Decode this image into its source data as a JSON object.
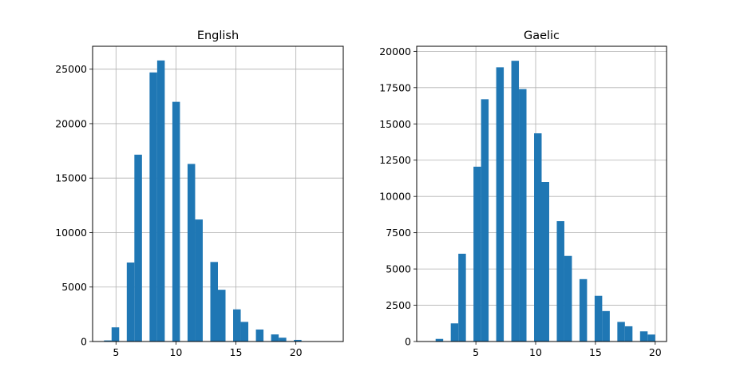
{
  "chart_data": [
    {
      "type": "bar",
      "title": "English",
      "xlabel": "",
      "ylabel": "",
      "xlim": [
        3.05,
        23.95
      ],
      "ylim": [
        0,
        27100
      ],
      "grid": true,
      "bar_color": "#1f77b4",
      "bin_width": 0.633,
      "x": [
        4,
        4.633,
        5.267,
        5.9,
        6.533,
        7.167,
        7.8,
        8.433,
        9.067,
        9.7,
        10.333,
        10.967,
        11.6,
        12.233,
        12.867,
        13.5,
        14.133,
        14.767,
        15.4,
        16.033,
        16.667,
        17.3,
        17.933,
        18.567,
        19.2,
        19.833,
        20.467,
        21.1,
        21.733,
        22.367
      ],
      "values": [
        100,
        1300,
        0,
        7250,
        17150,
        0,
        24700,
        25800,
        0,
        22000,
        0,
        16300,
        11200,
        0,
        7300,
        4750,
        0,
        2950,
        1800,
        0,
        1100,
        0,
        650,
        350,
        0,
        150,
        0,
        0,
        0,
        0
      ],
      "xticks": [
        5,
        10,
        15,
        20
      ],
      "xtick_labels": [
        "5",
        "10",
        "15",
        "20"
      ],
      "yticks": [
        0,
        5000,
        10000,
        15000,
        20000,
        25000
      ],
      "ytick_labels": [
        "0",
        "5000",
        "10000",
        "15000",
        "20000",
        "25000"
      ]
    },
    {
      "type": "bar",
      "title": "Gaelic",
      "xlabel": "",
      "ylabel": "",
      "xlim": [
        0.05,
        20.95
      ],
      "ylim": [
        0,
        20350
      ],
      "grid": true,
      "bar_color": "#1f77b4",
      "bin_width": 0.633,
      "x": [
        1,
        1.633,
        2.267,
        2.9,
        3.533,
        4.167,
        4.8,
        5.433,
        6.067,
        6.7,
        7.333,
        7.967,
        8.6,
        9.233,
        9.867,
        10.5,
        11.133,
        11.767,
        12.4,
        13.033,
        13.667,
        14.3,
        14.933,
        15.567,
        16.2,
        16.833,
        17.467,
        18.1,
        18.733,
        19.367
      ],
      "values": [
        0,
        180,
        0,
        1250,
        6050,
        0,
        12050,
        16700,
        0,
        18900,
        0,
        19350,
        17400,
        0,
        14350,
        11000,
        0,
        8300,
        5900,
        0,
        4300,
        0,
        3150,
        2100,
        0,
        1350,
        1050,
        0,
        700,
        480
      ],
      "xticks": [
        5,
        10,
        15,
        20
      ],
      "xtick_labels": [
        "5",
        "10",
        "15",
        "20"
      ],
      "yticks": [
        0,
        2500,
        5000,
        7500,
        10000,
        12500,
        15000,
        17500,
        20000
      ],
      "ytick_labels": [
        "0",
        "2500",
        "5000",
        "7500",
        "10000",
        "12500",
        "15000",
        "17500",
        "20000"
      ]
    }
  ]
}
